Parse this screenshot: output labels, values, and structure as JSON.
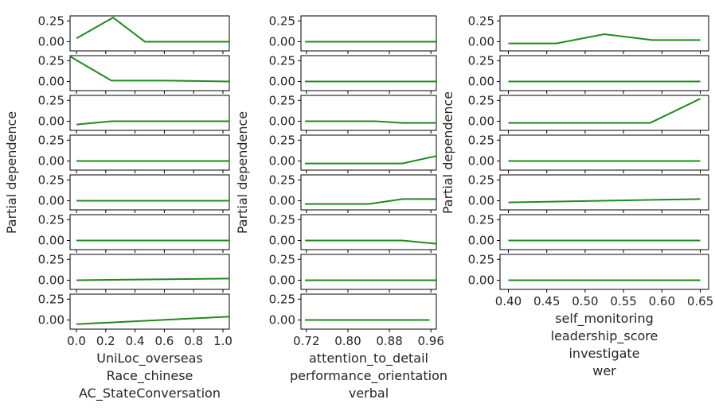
{
  "chart_data": {
    "type": "line",
    "title": "",
    "ylabel": "Partial dependence",
    "ylim": [
      -0.11,
      0.31
    ],
    "yticks": [
      "0.25",
      "0.00"
    ],
    "ytick_values": [
      0.25,
      0.0
    ],
    "line_color": "#1f8a1f",
    "columns": [
      {
        "xlabel": "UniLoc_overseas",
        "xticks": [
          "0.0",
          "0.2",
          "0.4",
          "0.6",
          "0.8",
          "1.0"
        ],
        "overlap_labels": [
          "Race_chinese",
          "AC_StateConversation"
        ],
        "subplots": [
          {
            "x": [
              0.04,
              0.27,
              0.47,
              1.0
            ],
            "y": [
              0.04,
              0.29,
              0.0,
              0.0
            ]
          },
          {
            "x": [
              0.0,
              0.26,
              0.6,
              1.0
            ],
            "y": [
              0.3,
              0.01,
              0.01,
              0.0
            ]
          },
          {
            "x": [
              0.04,
              0.26,
              1.0
            ],
            "y": [
              -0.04,
              0.0,
              0.0
            ]
          },
          {
            "x": [
              0.04,
              1.0
            ],
            "y": [
              0.0,
              0.0
            ]
          },
          {
            "x": [
              0.04,
              1.0
            ],
            "y": [
              0.0,
              0.0
            ]
          },
          {
            "x": [
              0.04,
              1.0
            ],
            "y": [
              0.0,
              0.0
            ]
          },
          {
            "x": [
              0.04,
              1.0
            ],
            "y": [
              0.0,
              0.02
            ]
          },
          {
            "x": [
              0.04,
              1.0
            ],
            "y": [
              -0.05,
              0.04
            ]
          }
        ]
      },
      {
        "xlabel": "attention_to_detail",
        "xticks": [
          "0.72",
          "0.80",
          "0.88",
          "0.96"
        ],
        "overlap_labels": [
          "performance_orientation",
          "verbal"
        ],
        "subplots": [
          {
            "x": [
              0.03,
              1.0
            ],
            "y": [
              0.0,
              0.0
            ]
          },
          {
            "x": [
              0.03,
              1.0
            ],
            "y": [
              0.0,
              0.0
            ]
          },
          {
            "x": [
              0.03,
              0.55,
              0.75,
              1.0
            ],
            "y": [
              0.0,
              0.0,
              -0.02,
              -0.02
            ]
          },
          {
            "x": [
              0.03,
              0.75,
              1.0
            ],
            "y": [
              -0.03,
              -0.03,
              0.06
            ]
          },
          {
            "x": [
              0.03,
              0.5,
              0.75,
              1.0
            ],
            "y": [
              -0.04,
              -0.04,
              0.02,
              0.02
            ]
          },
          {
            "x": [
              0.03,
              0.75,
              1.0
            ],
            "y": [
              0.0,
              0.0,
              -0.04
            ]
          },
          {
            "x": [
              0.03,
              1.0
            ],
            "y": [
              0.0,
              0.0
            ]
          },
          {
            "x": [
              0.03,
              0.95
            ],
            "y": [
              0.0,
              0.0
            ]
          }
        ]
      },
      {
        "xlabel": "self_monitoring",
        "xticks": [
          "0.40",
          "0.45",
          "0.50",
          "0.55",
          "0.60",
          "0.65"
        ],
        "overlap_labels": [
          "leadership_score",
          "investigate",
          "wer"
        ],
        "subplots": [
          {
            "x": [
              0.04,
              0.27,
              0.5,
              0.73,
              0.96
            ],
            "y": [
              -0.02,
              -0.02,
              0.09,
              0.02,
              0.02
            ]
          },
          {
            "x": [
              0.04,
              0.96
            ],
            "y": [
              0.0,
              0.0
            ]
          },
          {
            "x": [
              0.04,
              0.72,
              0.96
            ],
            "y": [
              -0.02,
              -0.02,
              0.27
            ]
          },
          {
            "x": [
              0.04,
              0.96
            ],
            "y": [
              0.0,
              0.0
            ]
          },
          {
            "x": [
              0.04,
              0.96
            ],
            "y": [
              -0.02,
              0.02
            ]
          },
          {
            "x": [
              0.04,
              0.96
            ],
            "y": [
              0.0,
              0.0
            ]
          },
          {
            "x": [
              0.04,
              0.96
            ],
            "y": [
              0.0,
              0.0
            ]
          }
        ]
      }
    ]
  }
}
